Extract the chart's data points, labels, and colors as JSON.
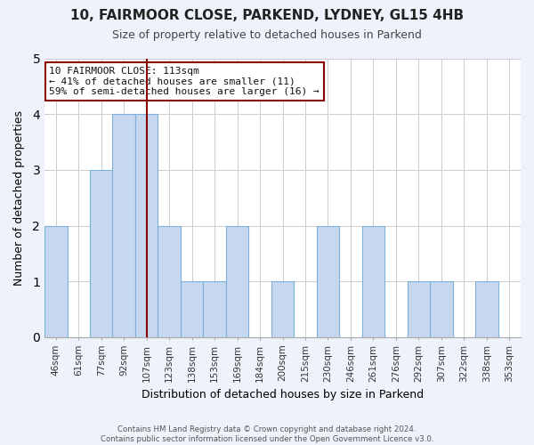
{
  "title": "10, FAIRMOOR CLOSE, PARKEND, LYDNEY, GL15 4HB",
  "subtitle": "Size of property relative to detached houses in Parkend",
  "xlabel": "Distribution of detached houses by size in Parkend",
  "ylabel": "Number of detached properties",
  "categories": [
    "46sqm",
    "61sqm",
    "77sqm",
    "92sqm",
    "107sqm",
    "123sqm",
    "138sqm",
    "153sqm",
    "169sqm",
    "184sqm",
    "200sqm",
    "215sqm",
    "230sqm",
    "246sqm",
    "261sqm",
    "276sqm",
    "292sqm",
    "307sqm",
    "322sqm",
    "338sqm",
    "353sqm"
  ],
  "values": [
    2,
    0,
    3,
    4,
    4,
    2,
    1,
    1,
    2,
    0,
    1,
    0,
    2,
    0,
    2,
    0,
    1,
    1,
    0,
    1,
    0
  ],
  "bar_color": "#C5D8F0",
  "bar_edge_color": "#7EB1D8",
  "bar_width": 1.0,
  "ylim": [
    0,
    5
  ],
  "yticks": [
    0,
    1,
    2,
    3,
    4,
    5
  ],
  "vline_x": 4.5,
  "vline_color": "#8B0000",
  "annotation_title": "10 FAIRMOOR CLOSE: 113sqm",
  "annotation_line1": "← 41% of detached houses are smaller (11)",
  "annotation_line2": "59% of semi-detached houses are larger (16) →",
  "annotation_box_color": "#8B0000",
  "footer1": "Contains HM Land Registry data © Crown copyright and database right 2024.",
  "footer2": "Contains public sector information licensed under the Open Government Licence v3.0.",
  "bg_color": "#EEF2FA",
  "plot_bg_color": "#FFFFFF"
}
